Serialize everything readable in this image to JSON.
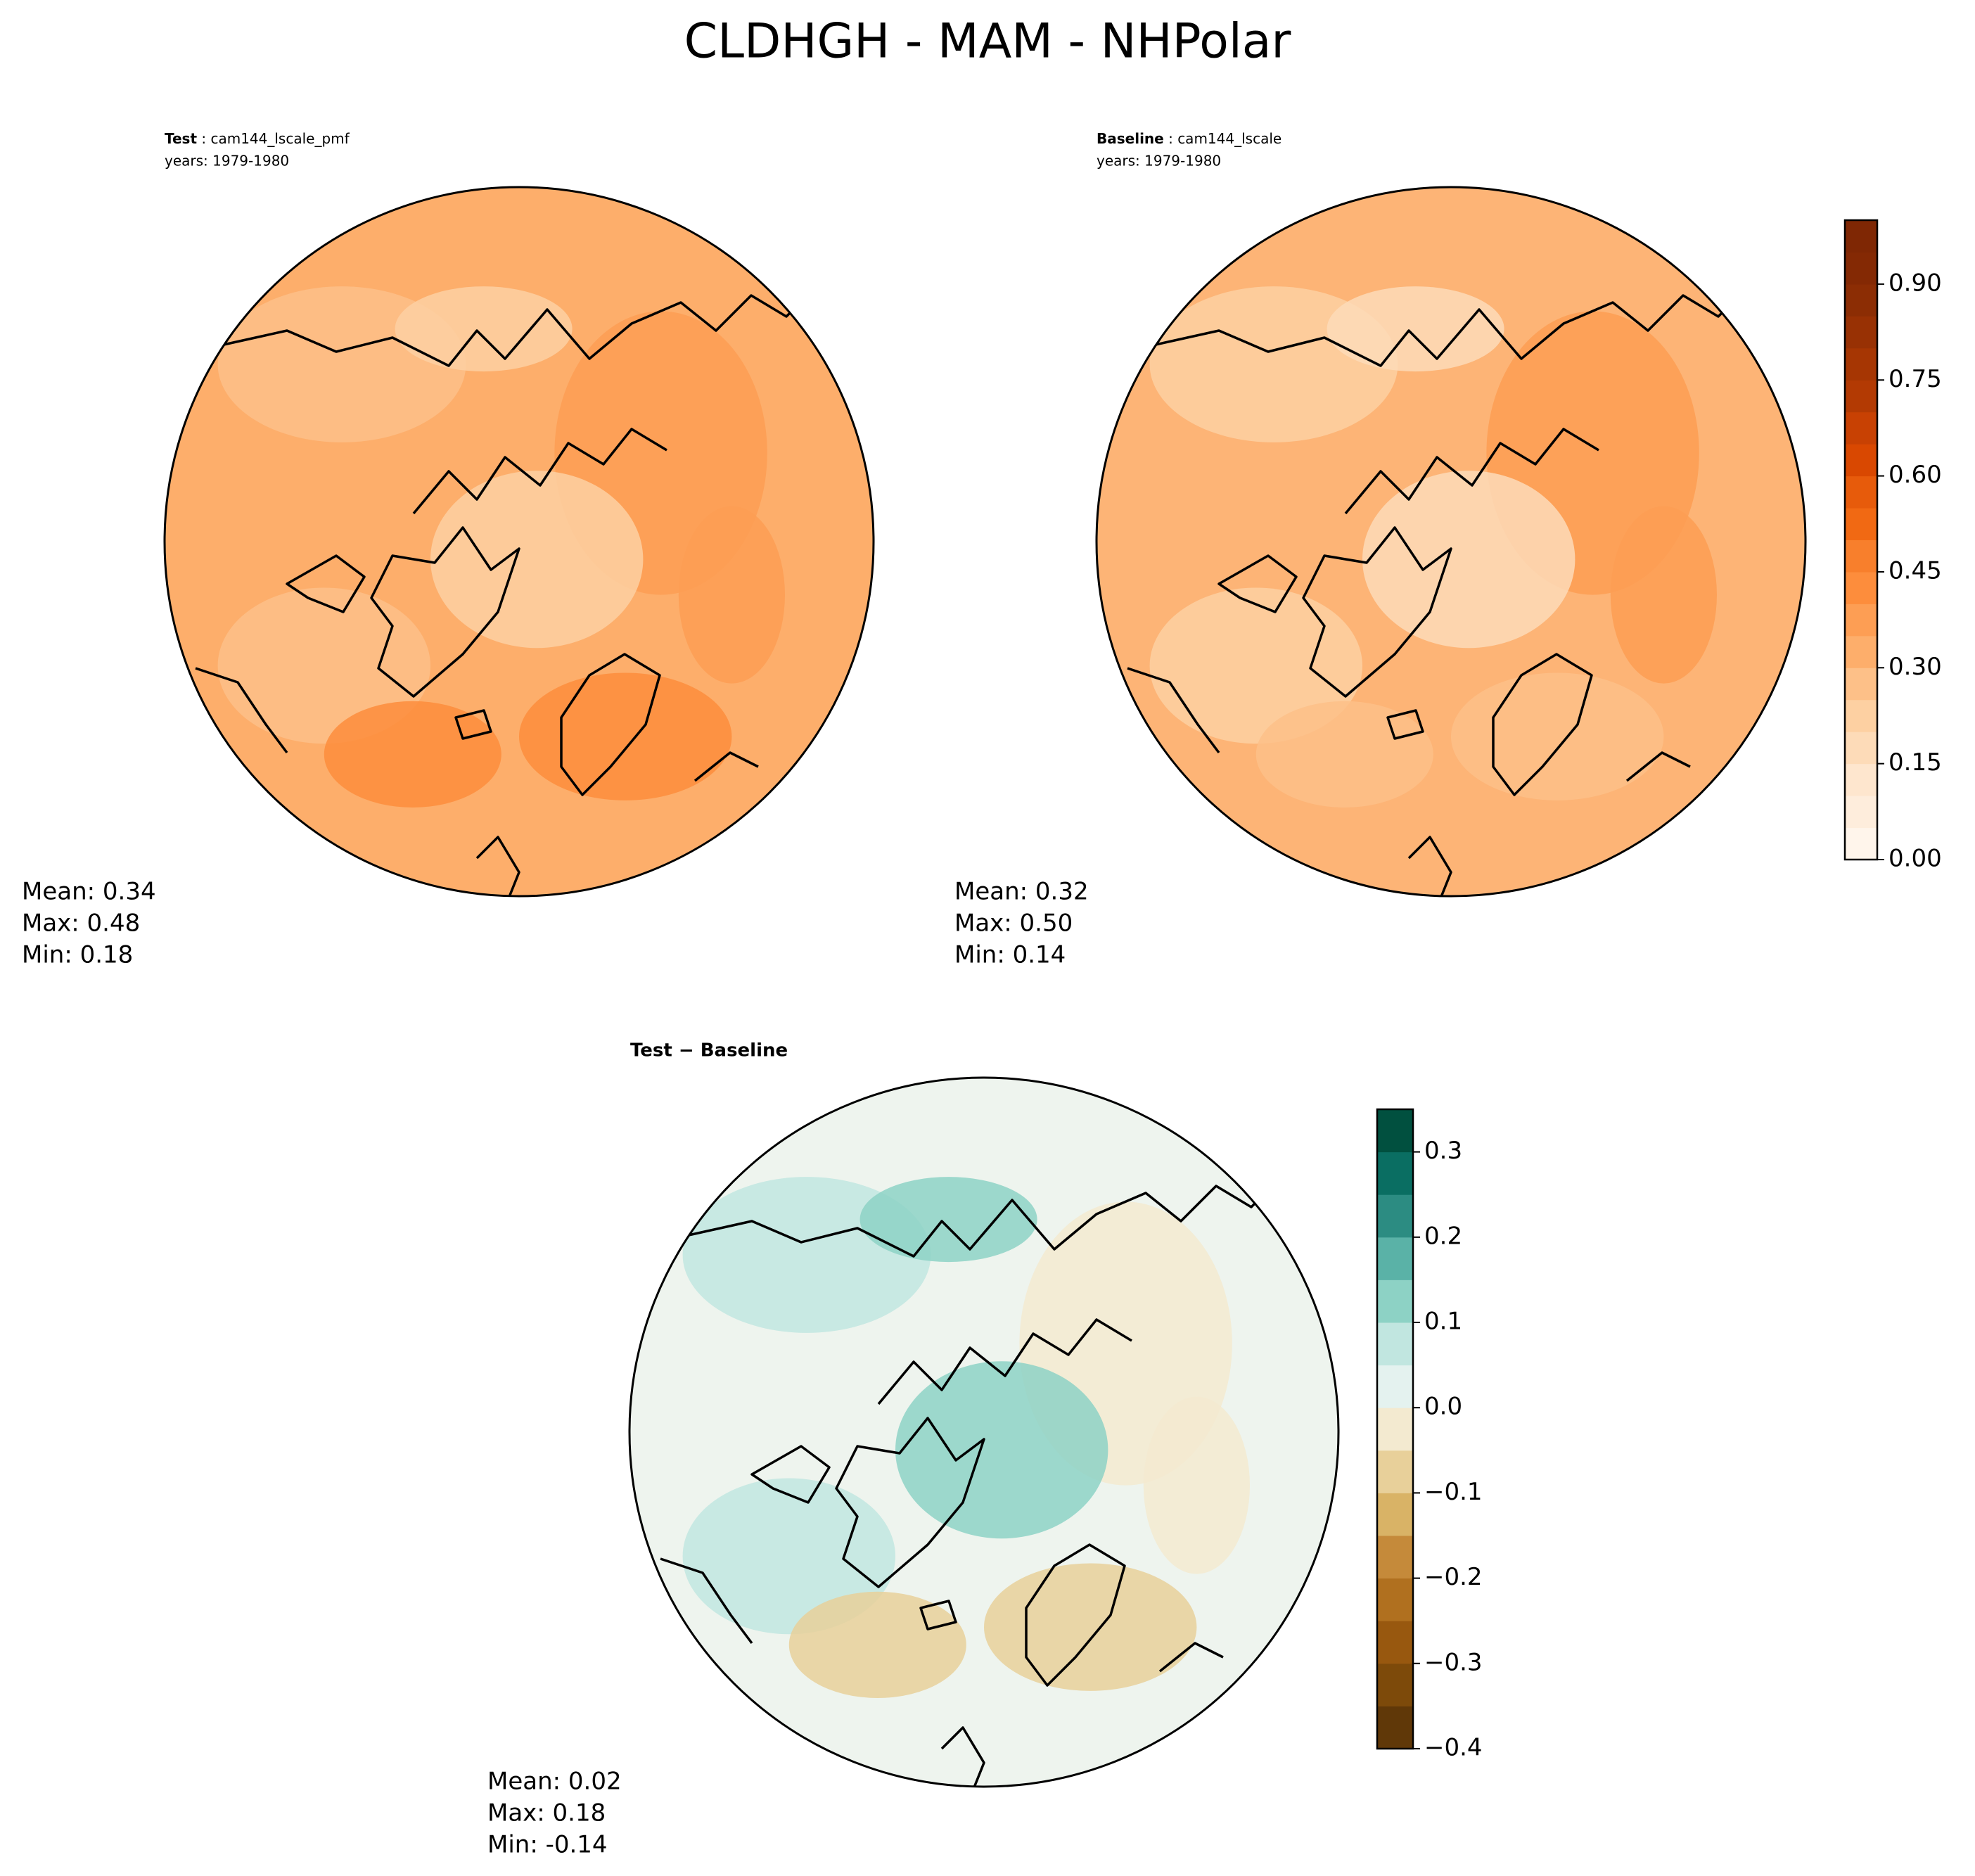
{
  "title": "CLDHGH - MAM - NHPolar",
  "panels": [
    {
      "label_bold": "Test",
      "label_name": "cam144_lscale_pmf",
      "years": "years: 1979-1980",
      "stats": [
        "Mean:  0.34",
        "Max:  0.48",
        "Min:  0.18"
      ]
    },
    {
      "label_bold": "Baseline",
      "label_name": "cam144_lscale",
      "years": "years: 1979-1980",
      "stats": [
        "Mean:  0.32",
        "Max:  0.50",
        "Min:  0.14"
      ]
    },
    {
      "label_bold": "Test − Baseline",
      "stats": [
        "Mean:  0.02",
        "Max:  0.18",
        "Min: -0.14"
      ]
    }
  ],
  "colorbars": [
    {
      "range": [
        0,
        1.0
      ],
      "ticks": [
        {
          "value": 0,
          "label": "0.00"
        },
        {
          "value": 0.15,
          "label": "0.15"
        },
        {
          "value": 0.3,
          "label": "0.30"
        },
        {
          "value": 0.45,
          "label": "0.45"
        },
        {
          "value": 0.6,
          "label": "0.60"
        },
        {
          "value": 0.75,
          "label": "0.75"
        },
        {
          "value": 0.9,
          "label": "0.90"
        }
      ],
      "colors": [
        "#fff5eb",
        "#feeddc",
        "#fee6ce",
        "#fddbb8",
        "#fdd0a2",
        "#fdc088",
        "#fdae6b",
        "#fd9e54",
        "#fd8d3c",
        "#f87f2c",
        "#f16913",
        "#e75b0b",
        "#d94801",
        "#c84103",
        "#b33a03",
        "#a63603",
        "#983104",
        "#8c2d04",
        "#842904",
        "#7f2704"
      ]
    },
    {
      "range": [
        -0.4,
        0.35
      ],
      "ticks": [
        {
          "value": -0.4,
          "label": "−0.4"
        },
        {
          "value": -0.3,
          "label": "−0.3"
        },
        {
          "value": -0.2,
          "label": "−0.2"
        },
        {
          "value": -0.1,
          "label": "−0.1"
        },
        {
          "value": 0,
          "label": "0.0"
        },
        {
          "value": 0.1,
          "label": "0.1"
        },
        {
          "value": 0.2,
          "label": "0.2"
        },
        {
          "value": 0.3,
          "label": "0.3"
        }
      ],
      "colors": [
        "#603808",
        "#7d4a0a",
        "#98580f",
        "#b0701f",
        "#c58a3a",
        "#d9b366",
        "#e8d09a",
        "#f3ead0",
        "#e4f2ef",
        "#c1e6e0",
        "#8dd2c5",
        "#5ab2a7",
        "#2c8c82",
        "#0a6e62",
        "#01503f"
      ]
    }
  ]
}
